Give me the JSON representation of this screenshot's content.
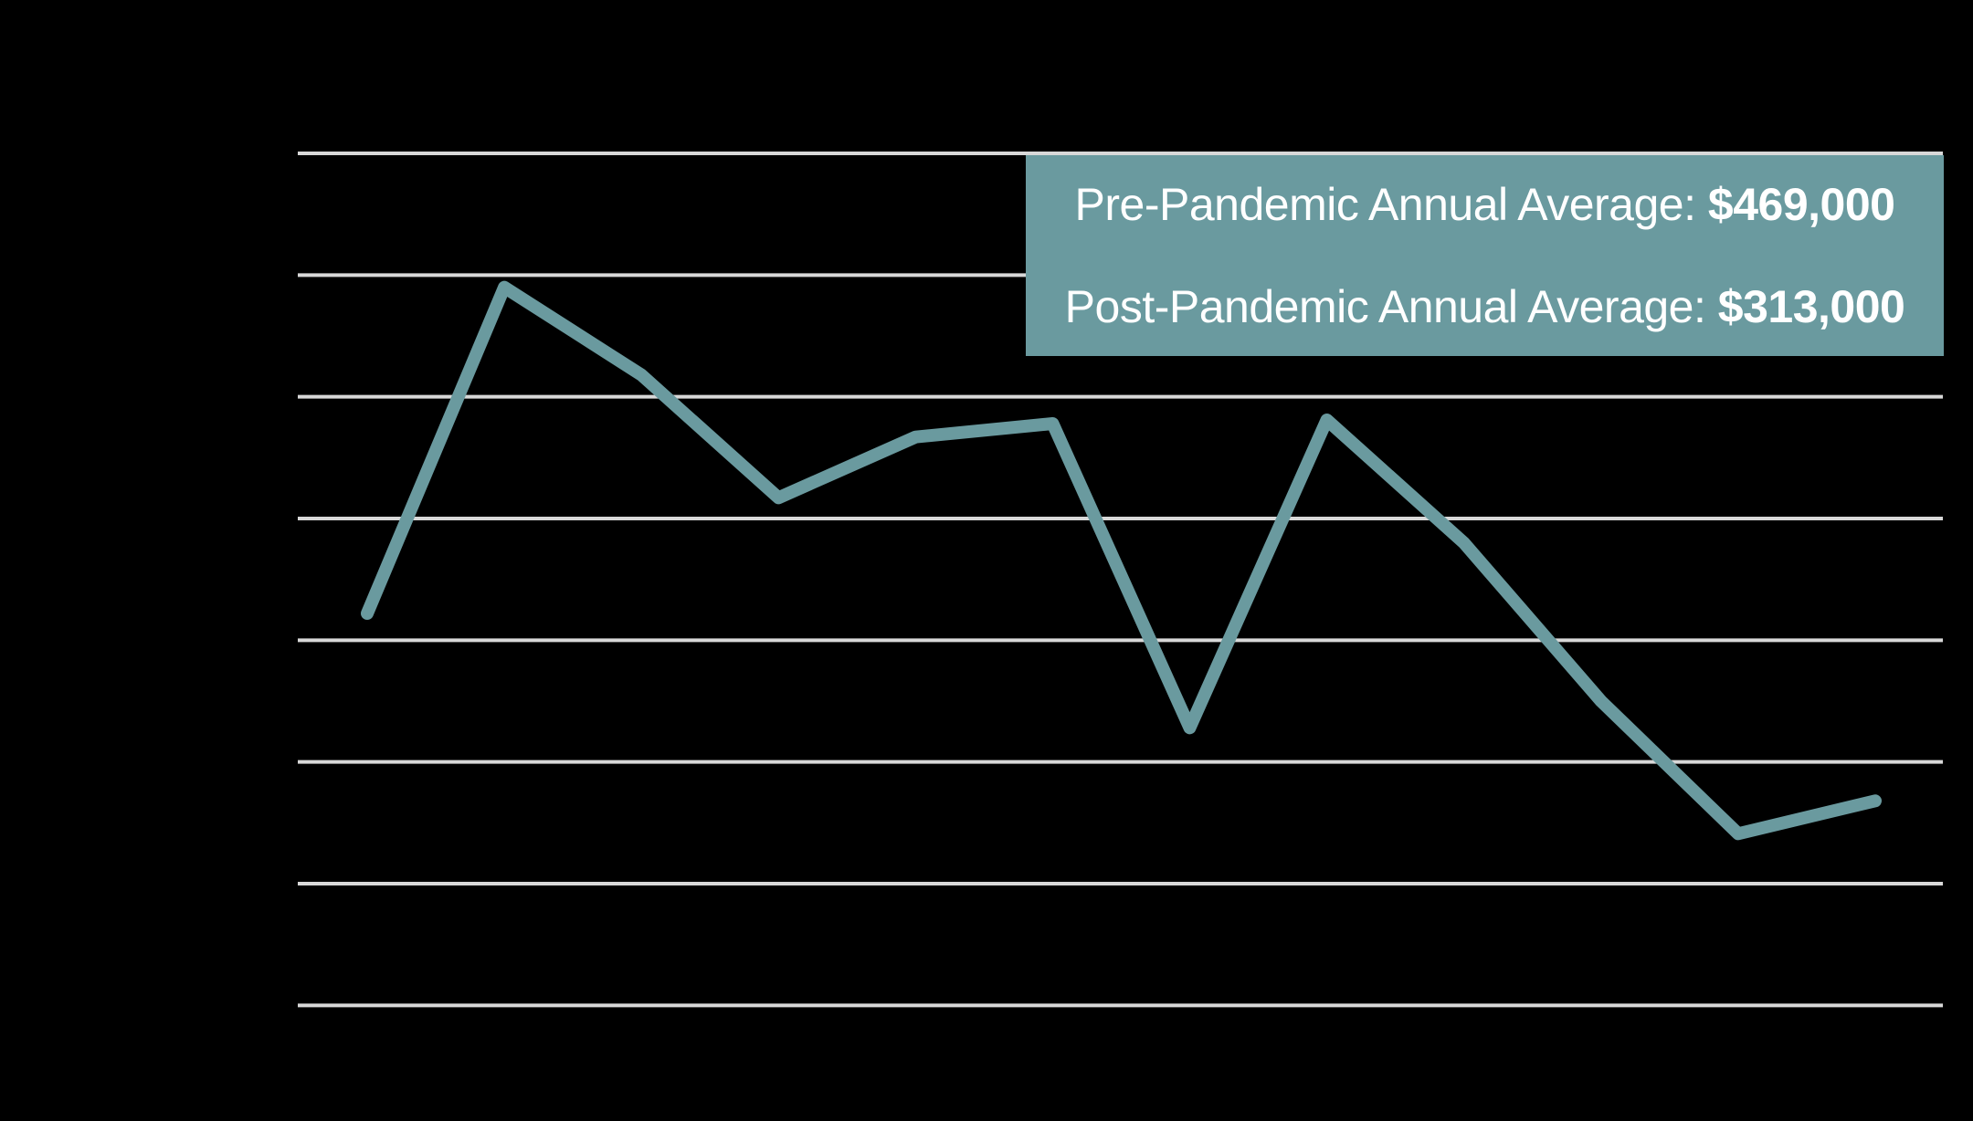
{
  "chart_data": {
    "type": "line",
    "title": "",
    "xlabel": "",
    "ylabel": "",
    "x": [
      1,
      2,
      3,
      4,
      5,
      6,
      7,
      8,
      9,
      10,
      11,
      12
    ],
    "x_labels_visible": false,
    "y_labels_visible": false,
    "series": [
      {
        "name": "annual-value",
        "values_thousands_usd": [
          322,
          590,
          518,
          417,
          467,
          478,
          228,
          481,
          380,
          250,
          141,
          168
        ]
      }
    ],
    "ylim_thousands_usd": [
      0,
      700
    ],
    "gridline_step_thousands_usd": 100,
    "grid": "horizontal-only",
    "legend": "none",
    "line_color": "#6A9A9F",
    "gridline_color": "#D8D8D8",
    "background_color": "#000000"
  },
  "callout": {
    "background_color": "#6A9A9F",
    "text_color": "#FFFFFF",
    "lines": [
      {
        "label": "Pre-Pandemic Annual Average: ",
        "value": "$469,000"
      },
      {
        "label": "Post-Pandemic Annual Average: ",
        "value": "$313,000"
      }
    ]
  }
}
